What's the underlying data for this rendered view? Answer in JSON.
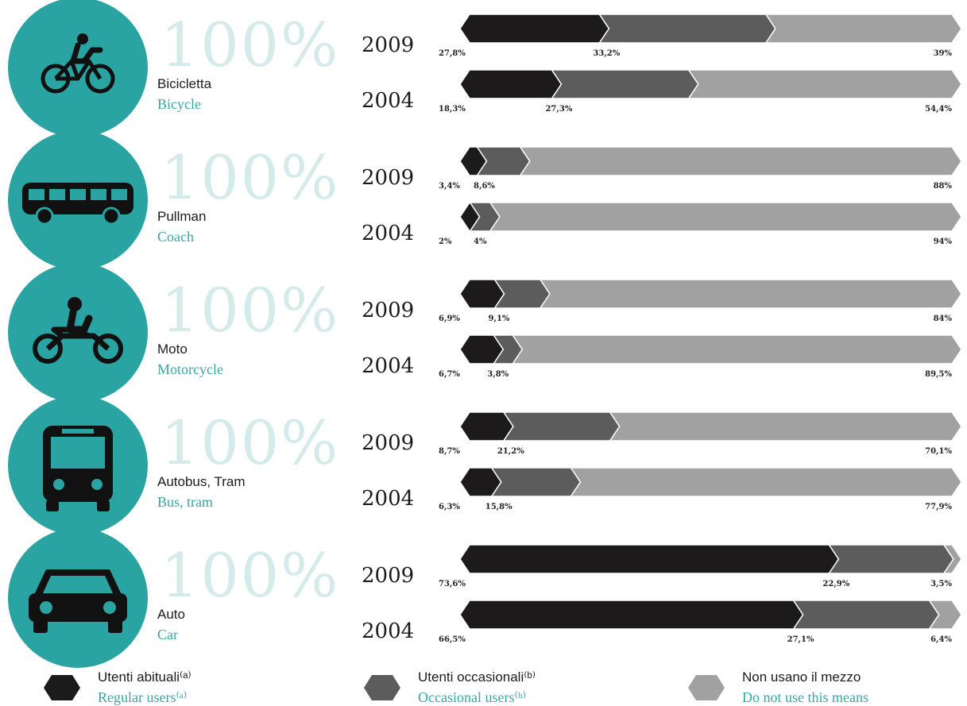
{
  "chart_data": {
    "type": "bar",
    "stacked": true,
    "orientation": "horizontal",
    "big_label": "100%",
    "series": [
      {
        "key": "regular",
        "name_it": "Utenti abituali⁽ᵃ⁾",
        "name_en": "Regular users⁽ᵃ⁾",
        "color": "#1c1a1a"
      },
      {
        "key": "occasional",
        "name_it": "Utenti occasionali⁽ᵇ⁾",
        "name_en": "Occasional users⁽ᵇ⁾",
        "color": "#5c5c5c"
      },
      {
        "key": "non",
        "name_it": "Non usano il mezzo",
        "name_en": "Do not use this means",
        "color": "#a1a1a1"
      }
    ],
    "groups": [
      {
        "label_it": "Bicicletta",
        "label_en": "Bicycle",
        "icon": "bicycle-icon",
        "rows": [
          {
            "year": "2009",
            "values": [
              27.8,
              33.2,
              39
            ],
            "labels": [
              "27,8%",
              "33,2%",
              "39%"
            ]
          },
          {
            "year": "2004",
            "values": [
              18.3,
              27.3,
              54.4
            ],
            "labels": [
              "18,3%",
              "27,3%",
              "54,4%"
            ]
          }
        ]
      },
      {
        "label_it": "Pullman",
        "label_en": "Coach",
        "icon": "coach-icon",
        "rows": [
          {
            "year": "2009",
            "values": [
              3.4,
              8.6,
              88
            ],
            "labels": [
              "3,4%",
              "8,6%",
              "88%"
            ]
          },
          {
            "year": "2004",
            "values": [
              2,
              4,
              94
            ],
            "labels": [
              "2%",
              "4%",
              "94%"
            ]
          }
        ]
      },
      {
        "label_it": "Moto",
        "label_en": "Motorcycle",
        "icon": "motorcycle-icon",
        "rows": [
          {
            "year": "2009",
            "values": [
              6.9,
              9.1,
              84
            ],
            "labels": [
              "6,9%",
              "9,1%",
              "84%"
            ]
          },
          {
            "year": "2004",
            "values": [
              6.7,
              3.8,
              89.5
            ],
            "labels": [
              "6,7%",
              "3,8%",
              "89,5%"
            ]
          }
        ]
      },
      {
        "label_it": "Autobus, Tram",
        "label_en": "Bus, tram",
        "icon": "bus-icon",
        "rows": [
          {
            "year": "2009",
            "values": [
              8.7,
              21.2,
              70.1
            ],
            "labels": [
              "8,7%",
              "21,2%",
              "70,1%"
            ]
          },
          {
            "year": "2004",
            "values": [
              6.3,
              15.8,
              77.9
            ],
            "labels": [
              "6,3%",
              "15,8%",
              "77,9%"
            ]
          }
        ]
      },
      {
        "label_it": "Auto",
        "label_en": "Car",
        "icon": "car-icon",
        "rows": [
          {
            "year": "2009",
            "values": [
              73.6,
              22.9,
              3.5
            ],
            "labels": [
              "73,6%",
              "22,9%",
              "3,5%"
            ]
          },
          {
            "year": "2004",
            "values": [
              66.5,
              27.1,
              6.4
            ],
            "labels": [
              "66,5%",
              "27,1%",
              "6,4%"
            ]
          }
        ]
      }
    ]
  },
  "colors": {
    "teal_circle": "#2aa3a3",
    "big_label": "#d4ebea",
    "english_text": "#3aa6a4"
  }
}
